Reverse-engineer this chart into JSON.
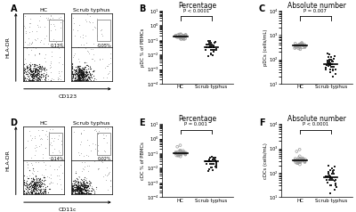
{
  "title_B": "Percentage",
  "title_C": "Absolute number",
  "title_E": "Percentage",
  "title_F": "Absolute number",
  "ylabel_B": "pDC % of PBMCs",
  "ylabel_C": "pDCs (cells/mL)",
  "ylabel_E": "cDC % of PBMCs",
  "ylabel_F": "cDCs (cells/mL)",
  "pval_B": "P < 0.0001",
  "pval_C": "P = 0.007",
  "pval_E": "P = 0.001",
  "pval_F": "P < 0.0001",
  "panel_labels": [
    "A",
    "B",
    "C",
    "D",
    "E",
    "F"
  ],
  "flow_A_label_HC": "HC",
  "flow_A_label_ST": "Scrub typhus",
  "flow_A_pct_HC": "0.13%",
  "flow_A_pct_ST": "0.05%",
  "flow_A_xlabel": "CD123",
  "flow_A_ylabel": "HLA-DR",
  "flow_D_label_HC": "HC",
  "flow_D_label_ST": "Scrub typhus",
  "flow_D_pct_HC": "0.14%",
  "flow_D_pct_ST": "0.02%",
  "flow_D_xlabel": "CD11c",
  "flow_D_ylabel": "HLA-DR",
  "HC_B": [
    0.18,
    0.2,
    0.15,
    0.17,
    0.22,
    0.16,
    0.14,
    0.19,
    0.21,
    0.23,
    0.12,
    0.11,
    0.24,
    0.18,
    0.16,
    0.2,
    0.15,
    0.13,
    0.22,
    0.19,
    0.14,
    0.17,
    0.21,
    0.11,
    0.12,
    0.16,
    0.25,
    0.13,
    0.2,
    0.18
  ],
  "ST_B": [
    0.08,
    0.06,
    0.04,
    0.03,
    0.05,
    0.07,
    0.02,
    0.03,
    0.04,
    0.06,
    0.05,
    0.03,
    0.02,
    0.08,
    0.012,
    0.03,
    0.04,
    0.02,
    0.05,
    0.06,
    0.03,
    0.02,
    0.04,
    0.05,
    0.011,
    0.02,
    0.03,
    0.04,
    0.02,
    0.015,
    0.025,
    0.035,
    0.045,
    0.055,
    0.009,
    0.008
  ],
  "HC_C": [
    450,
    380,
    320,
    400,
    350,
    420,
    300,
    380,
    350,
    410,
    440,
    390,
    280,
    330,
    370,
    400,
    360,
    420,
    310,
    290,
    430,
    340,
    380,
    420,
    350,
    300,
    260,
    310,
    480,
    390
  ],
  "ST_C": [
    180,
    120,
    80,
    60,
    100,
    140,
    50,
    70,
    90,
    120,
    100,
    60,
    40,
    160,
    30,
    50,
    70,
    40,
    90,
    110,
    60,
    40,
    80,
    100,
    30,
    40,
    60,
    80,
    50,
    20,
    25,
    35,
    45,
    55,
    65,
    75
  ],
  "HC_E": [
    0.12,
    0.1,
    0.08,
    0.15,
    0.11,
    0.09,
    0.13,
    0.1,
    0.07,
    0.09,
    0.11,
    0.12,
    0.08,
    0.1,
    0.07,
    0.09,
    0.11,
    0.13,
    0.08,
    0.1,
    0.12,
    0.09,
    0.11,
    0.08,
    0.1,
    0.07,
    0.09,
    0.11,
    0.12,
    0.35,
    0.28,
    0.06,
    0.14,
    0.16,
    0.08
  ],
  "ST_E": [
    0.05,
    0.04,
    0.03,
    0.06,
    0.04,
    0.02,
    0.03,
    0.05,
    0.02,
    0.03,
    0.04,
    0.05,
    0.02,
    0.03,
    0.04,
    0.02,
    0.03,
    0.04,
    0.02,
    0.01,
    0.03,
    0.02,
    0.04,
    0.01,
    0.02,
    0.01,
    0.02,
    0.03,
    0.008,
    0.007,
    0.006,
    0.015,
    0.025,
    0.035,
    0.018,
    0.012
  ],
  "HC_F": [
    380,
    320,
    280,
    400,
    350,
    300,
    360,
    310,
    250,
    290,
    340,
    370,
    280,
    320,
    250,
    300,
    340,
    370,
    270,
    310,
    360,
    290,
    330,
    270,
    310,
    260,
    290,
    340,
    370,
    900,
    750,
    220,
    410,
    480,
    260
  ],
  "ST_F": [
    180,
    130,
    90,
    60,
    110,
    60,
    80,
    120,
    50,
    70,
    100,
    130,
    50,
    70,
    90,
    50,
    70,
    90,
    50,
    30,
    70,
    50,
    100,
    30,
    50,
    30,
    50,
    70,
    200,
    150,
    40,
    25,
    35,
    20,
    15,
    45
  ],
  "open_color": "#aaaaaa",
  "filled_color": "#222222",
  "median_color": "#000000",
  "bg_color": "#ffffff"
}
